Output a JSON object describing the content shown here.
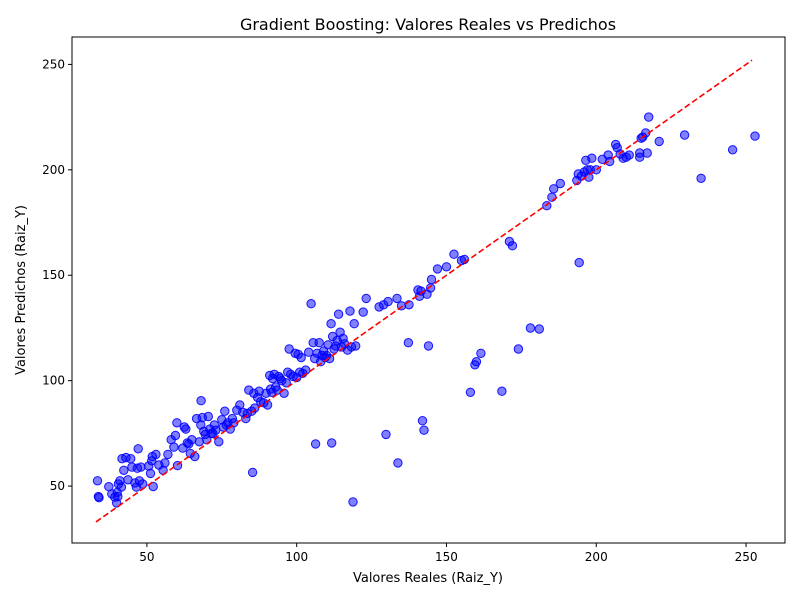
{
  "chart_data": {
    "type": "scatter",
    "title": "Gradient Boosting: Valores Reales vs Predichos",
    "xlabel": "Valores Reales (Raiz_Y)",
    "ylabel": "Valores Predichos (Raiz_Y)",
    "xlim": [
      25,
      263
    ],
    "ylim": [
      23,
      263
    ],
    "xticks": [
      50,
      100,
      150,
      200,
      250
    ],
    "yticks": [
      50,
      100,
      150,
      200,
      250
    ],
    "grid": false,
    "legend": "none",
    "point_color": "#0000ff",
    "point_opacity": 0.5,
    "reference_line": {
      "from": 33,
      "to": 252,
      "color": "#ff0000",
      "style": "dashed"
    },
    "points": [
      [
        33.5,
        52.5
      ],
      [
        33.8,
        45
      ],
      [
        34,
        44.5
      ],
      [
        37.3,
        49.7
      ],
      [
        38.3,
        46.3
      ],
      [
        39.3,
        44.7
      ],
      [
        39.9,
        42
      ],
      [
        40.1,
        47
      ],
      [
        40.3,
        45
      ],
      [
        40.5,
        51
      ],
      [
        41,
        52.5
      ],
      [
        41.5,
        49.5
      ],
      [
        41.7,
        63
      ],
      [
        42.3,
        57.5
      ],
      [
        43,
        63.5
      ],
      [
        43.7,
        53
      ],
      [
        44.6,
        63
      ],
      [
        45,
        59
      ],
      [
        46,
        51.5
      ],
      [
        46.5,
        49.5
      ],
      [
        46.8,
        58.5
      ],
      [
        47.1,
        67.7
      ],
      [
        47.5,
        52.5
      ],
      [
        48,
        59
      ],
      [
        48.6,
        51
      ],
      [
        50.6,
        59.5
      ],
      [
        51.2,
        56
      ],
      [
        51.6,
        62
      ],
      [
        51.8,
        64
      ],
      [
        52.1,
        49.8
      ],
      [
        53,
        65
      ],
      [
        54,
        60
      ],
      [
        55.4,
        57.5
      ],
      [
        56,
        61
      ],
      [
        57,
        65
      ],
      [
        58.1,
        72
      ],
      [
        59,
        68.5
      ],
      [
        59.5,
        74
      ],
      [
        60,
        80
      ],
      [
        60.2,
        59.7
      ],
      [
        62,
        68
      ],
      [
        62.5,
        78
      ],
      [
        63,
        77
      ],
      [
        63.5,
        70.5
      ],
      [
        64,
        70
      ],
      [
        64.5,
        65.5
      ],
      [
        65,
        72
      ],
      [
        66,
        64
      ],
      [
        66.6,
        82
      ],
      [
        67.5,
        71
      ],
      [
        68,
        79
      ],
      [
        68.1,
        90.5
      ],
      [
        68.5,
        82.5
      ],
      [
        69,
        76
      ],
      [
        69.5,
        74.5
      ],
      [
        70,
        72
      ],
      [
        70.5,
        83
      ],
      [
        71,
        77
      ],
      [
        71.5,
        75
      ],
      [
        72,
        75
      ],
      [
        72.5,
        79
      ],
      [
        73,
        76.5
      ],
      [
        74,
        71
      ],
      [
        75,
        81.5
      ],
      [
        75.5,
        78
      ],
      [
        76,
        85.5
      ],
      [
        76.5,
        79
      ],
      [
        77,
        80
      ],
      [
        77.8,
        77
      ],
      [
        78.5,
        82
      ],
      [
        79,
        80
      ],
      [
        80,
        86
      ],
      [
        81,
        88.5
      ],
      [
        82,
        85
      ],
      [
        83,
        82
      ],
      [
        83.5,
        84.5
      ],
      [
        84,
        95.5
      ],
      [
        85,
        85.5
      ],
      [
        85.3,
        56.5
      ],
      [
        85.7,
        94
      ],
      [
        86,
        87
      ],
      [
        87,
        92
      ],
      [
        87.5,
        95
      ],
      [
        88,
        90
      ],
      [
        89,
        89.5
      ],
      [
        89.8,
        94
      ],
      [
        90.3,
        88.5
      ],
      [
        91,
        102.5
      ],
      [
        91.3,
        96
      ],
      [
        91.7,
        94.5
      ],
      [
        92,
        101
      ],
      [
        92.5,
        103
      ],
      [
        93,
        97
      ],
      [
        93.5,
        95.5
      ],
      [
        94,
        102
      ],
      [
        94.5,
        101
      ],
      [
        95,
        100
      ],
      [
        95.8,
        94
      ],
      [
        96.5,
        99
      ],
      [
        97,
        104
      ],
      [
        97.5,
        115
      ],
      [
        98,
        103
      ],
      [
        98.8,
        102
      ],
      [
        99.5,
        113
      ],
      [
        100,
        101.5
      ],
      [
        100.5,
        112.5
      ],
      [
        101,
        104
      ],
      [
        101.5,
        111
      ],
      [
        102,
        103.5
      ],
      [
        103,
        105
      ],
      [
        104,
        113.5
      ],
      [
        104.8,
        136.5
      ],
      [
        105.5,
        118
      ],
      [
        106,
        110.5
      ],
      [
        106.3,
        70
      ],
      [
        106.8,
        113
      ],
      [
        107.5,
        118
      ],
      [
        108,
        109
      ],
      [
        108.5,
        112
      ],
      [
        109,
        114
      ],
      [
        109.5,
        111
      ],
      [
        110,
        112
      ],
      [
        110.5,
        117
      ],
      [
        111,
        110.5
      ],
      [
        111.5,
        127
      ],
      [
        111.7,
        70.5
      ],
      [
        112,
        121
      ],
      [
        112.5,
        115
      ],
      [
        113,
        116.5
      ],
      [
        113.5,
        119
      ],
      [
        114,
        131.5
      ],
      [
        114.5,
        123
      ],
      [
        115,
        116
      ],
      [
        115.5,
        120
      ],
      [
        116,
        117.5
      ],
      [
        117,
        114.5
      ],
      [
        117.8,
        133
      ],
      [
        118.3,
        116
      ],
      [
        118.8,
        42.5
      ],
      [
        119.2,
        127
      ],
      [
        119.7,
        116.5
      ],
      [
        122.2,
        132.5
      ],
      [
        123.2,
        139
      ],
      [
        127.5,
        135
      ],
      [
        129,
        136
      ],
      [
        129.8,
        74.5
      ],
      [
        130.5,
        137.5
      ],
      [
        133.5,
        139
      ],
      [
        133.8,
        61
      ],
      [
        135,
        135.5
      ],
      [
        137.3,
        118
      ],
      [
        137.5,
        136
      ],
      [
        140.5,
        143
      ],
      [
        141,
        140
      ],
      [
        141.5,
        142.5
      ],
      [
        142,
        81
      ],
      [
        142.5,
        76.5
      ],
      [
        143.5,
        141
      ],
      [
        144,
        116.5
      ],
      [
        144.7,
        144
      ],
      [
        145,
        148
      ],
      [
        147,
        153
      ],
      [
        150,
        154
      ],
      [
        152.5,
        160
      ],
      [
        155,
        157
      ],
      [
        156,
        157.5
      ],
      [
        158,
        94.5
      ],
      [
        159.5,
        107.5
      ],
      [
        160,
        109
      ],
      [
        161.5,
        113
      ],
      [
        168.5,
        95
      ],
      [
        171,
        166
      ],
      [
        172,
        164
      ],
      [
        174,
        115
      ],
      [
        178,
        125
      ],
      [
        181,
        124.5
      ],
      [
        183.5,
        183
      ],
      [
        185.2,
        187
      ],
      [
        185.8,
        191
      ],
      [
        188,
        193.5
      ],
      [
        193.5,
        195
      ],
      [
        194,
        198
      ],
      [
        194.3,
        156
      ],
      [
        195,
        197
      ],
      [
        196,
        199
      ],
      [
        196.5,
        204.5
      ],
      [
        197,
        200
      ],
      [
        197.5,
        196.5
      ],
      [
        198,
        200
      ],
      [
        198.5,
        205.5
      ],
      [
        200,
        200
      ],
      [
        202,
        205
      ],
      [
        204,
        207
      ],
      [
        204.5,
        204
      ],
      [
        206.5,
        212
      ],
      [
        207,
        210.5
      ],
      [
        208,
        207.5
      ],
      [
        209,
        205.5
      ],
      [
        210,
        206
      ],
      [
        211,
        207
      ],
      [
        214.5,
        206
      ],
      [
        214.5,
        208
      ],
      [
        215,
        215
      ],
      [
        215.5,
        215.5
      ],
      [
        216.5,
        217.5
      ],
      [
        217,
        208
      ],
      [
        217.5,
        225
      ],
      [
        221,
        213.5
      ],
      [
        229.5,
        216.5
      ],
      [
        235,
        196
      ],
      [
        245.5,
        209.5
      ],
      [
        253,
        216
      ]
    ]
  }
}
